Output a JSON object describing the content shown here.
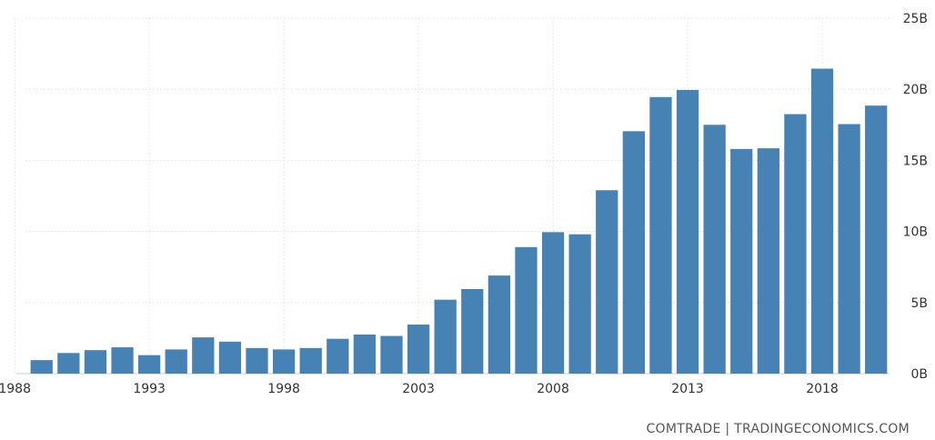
{
  "chart_data": {
    "type": "bar",
    "x": [
      1989,
      1990,
      1991,
      1992,
      1993,
      1994,
      1995,
      1996,
      1997,
      1998,
      1999,
      2000,
      2001,
      2002,
      2003,
      2004,
      2005,
      2006,
      2007,
      2008,
      2009,
      2010,
      2011,
      2012,
      2013,
      2014,
      2015,
      2016,
      2017,
      2018,
      2019,
      2020
    ],
    "values": [
      0.95,
      1.45,
      1.65,
      1.85,
      1.3,
      1.7,
      2.55,
      2.25,
      1.8,
      1.7,
      1.8,
      2.45,
      2.75,
      2.65,
      3.45,
      5.2,
      5.95,
      6.9,
      8.9,
      9.95,
      9.8,
      12.9,
      17.05,
      19.45,
      19.95,
      17.5,
      15.8,
      15.85,
      18.25,
      21.45,
      17.55,
      18.85
    ],
    "x_ticks": [
      "1988",
      "1993",
      "1998",
      "2003",
      "2008",
      "2013",
      "2018"
    ],
    "x_tick_values": [
      1988,
      1993,
      1998,
      2003,
      2008,
      2013,
      2018
    ],
    "y_ticks": [
      "0B",
      "5B",
      "10B",
      "15B",
      "20B",
      "25B"
    ],
    "y_tick_values": [
      0,
      5,
      10,
      15,
      20,
      25
    ],
    "ylim": [
      0,
      25
    ],
    "y_axis_position": "right",
    "grid": true,
    "bar_color": "#4682b4",
    "grid_color": "#e6e6e6"
  },
  "source_text": "COMTRADE | TRADINGECONOMICS.COM"
}
